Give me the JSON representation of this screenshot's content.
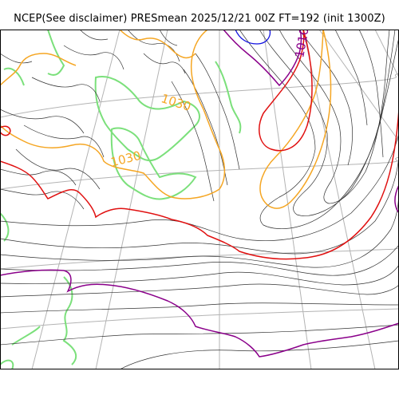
{
  "title": "NCEP(See disclaimer) PRESmean 2025/12/21 00Z FT=192 (init 1300Z)",
  "map": {
    "field": "PRESmean",
    "contour_labels": [
      {
        "text": "1030",
        "color": "#f5a623"
      },
      {
        "text": "1030",
        "color": "#f5a623"
      },
      {
        "text": "1010",
        "color": "#800080"
      }
    ]
  },
  "colors": {
    "isobar": "#333333",
    "coast": "#7be07b",
    "graticule": "#b3b3b3",
    "orange": "#f5a623",
    "red": "#e01010",
    "purple": "#8a008a",
    "blue": "#1010e0"
  }
}
